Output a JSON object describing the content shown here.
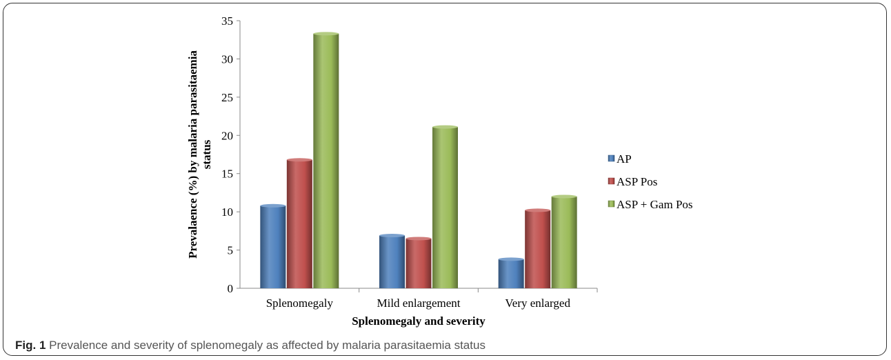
{
  "chart_data": {
    "type": "bar",
    "categories": [
      "Splenomegaly",
      "Mild enlargement",
      "Very enlarged"
    ],
    "series": [
      {
        "name": "AP",
        "values": [
          10.8,
          6.9,
          3.8
        ],
        "color": "#4F81BD"
      },
      {
        "name": "ASP Pos",
        "values": [
          16.8,
          6.5,
          10.2
        ],
        "color": "#C0504D"
      },
      {
        "name": "ASP + Gam Pos",
        "values": [
          33.3,
          21.1,
          12.0
        ],
        "color": "#9BBB59"
      }
    ],
    "xlabel": "Splenomegaly and severity",
    "ylabel_line1": "Prevalaence (%)  by malaria parasitaemia",
    "ylabel_line2": "status",
    "ylim": [
      0,
      35
    ],
    "yticks": [
      "0",
      "5",
      "10",
      "15",
      "20",
      "25",
      "30",
      "35"
    ],
    "grid": false,
    "legend_position": "right",
    "style": "3d-cylinder"
  },
  "caption": {
    "label": "Fig. 1",
    "text": "Prevalence and severity of splenomegaly as affected by malaria parasitaemia status"
  }
}
